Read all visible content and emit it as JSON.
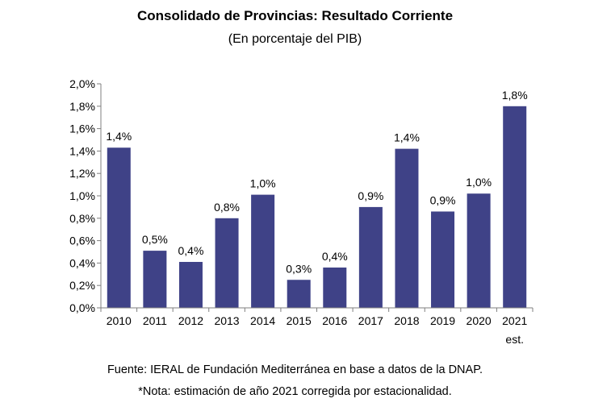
{
  "chart_data": {
    "type": "bar",
    "title": "Consolidado de Provincias: Resultado Corriente",
    "subtitle": "(En porcentaje del PIB)",
    "categories": [
      "2010",
      "2011",
      "2012",
      "2013",
      "2014",
      "2015",
      "2016",
      "2017",
      "2018",
      "2019",
      "2020",
      "2021"
    ],
    "category_sublabels": [
      "",
      "",
      "",
      "",
      "",
      "",
      "",
      "",
      "",
      "",
      "",
      "est."
    ],
    "values": [
      1.43,
      0.51,
      0.41,
      0.8,
      1.01,
      0.25,
      0.36,
      0.9,
      1.42,
      0.86,
      1.02,
      1.8
    ],
    "data_labels": [
      "1,4%",
      "0,5%",
      "0,4%",
      "0,8%",
      "1,0%",
      "0,3%",
      "0,4%",
      "0,9%",
      "1,4%",
      "0,9%",
      "1,0%",
      "1,8%"
    ],
    "y_ticks": [
      "0,0%",
      "0,2%",
      "0,4%",
      "0,6%",
      "0,8%",
      "1,0%",
      "1,2%",
      "1,4%",
      "1,6%",
      "1,8%",
      "2,0%"
    ],
    "ylim": [
      0,
      2.0
    ],
    "xlabel": "",
    "ylabel": "",
    "grid": false,
    "legend": "none",
    "bar_color": "#3f4287"
  },
  "footer": {
    "source": "Fuente: IERAL de Fundación Mediterránea en base a datos de la DNAP.",
    "note": "*Nota: estimación de año 2021 corregida por estacionalidad."
  }
}
